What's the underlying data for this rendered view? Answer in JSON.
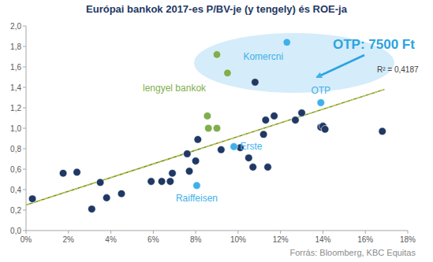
{
  "chart_data": {
    "type": "scatter",
    "title": "Európai bankok 2017-es P/BV-je (y tengely) és ROE-ja",
    "xlim": [
      0,
      18
    ],
    "ylim": [
      0,
      2
    ],
    "xticks": [
      {
        "value": 0,
        "label": "0%"
      },
      {
        "value": 2,
        "label": "2%"
      },
      {
        "value": 4,
        "label": "4%"
      },
      {
        "value": 6,
        "label": "6%"
      },
      {
        "value": 8,
        "label": "8%"
      },
      {
        "value": 10,
        "label": "10%"
      },
      {
        "value": 12,
        "label": "12%"
      },
      {
        "value": 14,
        "label": "14%"
      },
      {
        "value": 16,
        "label": "16%"
      },
      {
        "value": 18,
        "label": "18%"
      }
    ],
    "yticks": [
      {
        "value": 0,
        "label": "0,0"
      },
      {
        "value": 0.2,
        "label": "0,2"
      },
      {
        "value": 0.4,
        "label": "0,4"
      },
      {
        "value": 0.6,
        "label": "0,6"
      },
      {
        "value": 0.8,
        "label": "0,8"
      },
      {
        "value": 1,
        "label": "1,0"
      },
      {
        "value": 1.2,
        "label": "1,2"
      },
      {
        "value": 1.4,
        "label": "1,4"
      },
      {
        "value": 1.6,
        "label": "1,6"
      },
      {
        "value": 1.8,
        "label": "1,8"
      },
      {
        "value": 2,
        "label": "2,0"
      }
    ],
    "grid": false,
    "series": [
      {
        "color": "#1f3864",
        "marker": "circle",
        "x": [
          0.3,
          1.75,
          2.4,
          3.1,
          3.5,
          3.8,
          4.5,
          5.9,
          6.4,
          6.8,
          6.9,
          7.6,
          7.7,
          8.0,
          8.1,
          9.2,
          10.1,
          10.5,
          10.7,
          10.8,
          11.2,
          11.3,
          11.4,
          11.7,
          12.7,
          13.0,
          13.9,
          14.0,
          14.1,
          16.8
        ],
        "values": [
          0.31,
          0.56,
          0.57,
          0.21,
          0.47,
          0.32,
          0.36,
          0.48,
          0.48,
          0.48,
          0.56,
          0.75,
          0.58,
          0.68,
          0.89,
          0.79,
          0.81,
          0.71,
          0.62,
          1.45,
          0.94,
          1.08,
          0.62,
          1.12,
          1.08,
          1.15,
          1.01,
          1.02,
          0.99,
          0.97
        ]
      },
      {
        "name": "lengyel bankok",
        "color": "#7fae4e",
        "marker": "circle",
        "x": [
          9.0,
          9.5,
          8.55,
          8.6,
          9.0
        ],
        "values": [
          1.72,
          1.54,
          1.12,
          1.0,
          1.0
        ]
      },
      {
        "color": "#3fb0ea",
        "marker": "circle",
        "x": [
          12.3,
          13.9,
          9.8,
          8.05
        ],
        "values": [
          1.84,
          1.25,
          0.82,
          0.44
        ],
        "labels": [
          "Komercni",
          "OTP",
          "Erste",
          "Raiffeisen"
        ]
      }
    ],
    "trendline": {
      "x": [
        0,
        16.9
      ],
      "values": [
        0.25,
        1.38
      ],
      "label": "R² = 0,4187",
      "color": "#6b8e23",
      "line_style": "dashed"
    },
    "annotations": [
      {
        "text": "OTP: 7500 Ft",
        "color": "#2aa4e0"
      }
    ],
    "source": "Forrás: Bloomberg, KBC Equitas"
  }
}
